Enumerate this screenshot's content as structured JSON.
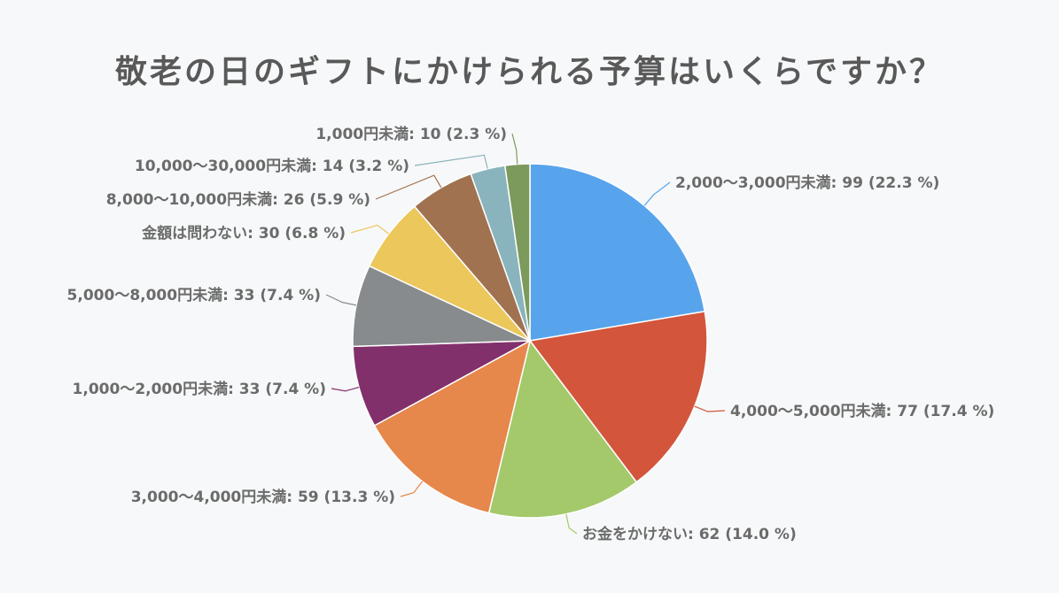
{
  "chart_data": {
    "type": "pie",
    "title": "敬老の日のギフトにかけられる予算はいくらですか？",
    "slices": [
      {
        "label": "2,000〜3,000円未満",
        "value": 99,
        "percent": "22.3 %",
        "color": "#58a4ec"
      },
      {
        "label": "4,000〜5,000円未満",
        "value": 77,
        "percent": "17.4 %",
        "color": "#d3553b"
      },
      {
        "label": "お金をかけない",
        "value": 62,
        "percent": "14.0 %",
        "color": "#a4c96b"
      },
      {
        "label": "3,000〜4,000円未満",
        "value": 59,
        "percent": "13.3 %",
        "color": "#e6874b"
      },
      {
        "label": "1,000〜2,000円未満",
        "value": 33,
        "percent": "7.4 %",
        "color": "#82306c"
      },
      {
        "label": "5,000〜8,000円未満",
        "value": 33,
        "percent": "7.4 %",
        "color": "#888b8d"
      },
      {
        "label": "金額は問わない",
        "value": 30,
        "percent": "6.8 %",
        "color": "#ebc75c"
      },
      {
        "label": "8,000〜10,000円未満",
        "value": 26,
        "percent": "5.9 %",
        "color": "#a07250"
      },
      {
        "label": "10,000〜30,000円未満",
        "value": 14,
        "percent": "3.2 %",
        "color": "#8ab4bd"
      },
      {
        "label": "1,000円未満",
        "value": 10,
        "percent": "2.3 %",
        "color": "#7b9a5c"
      }
    ]
  }
}
